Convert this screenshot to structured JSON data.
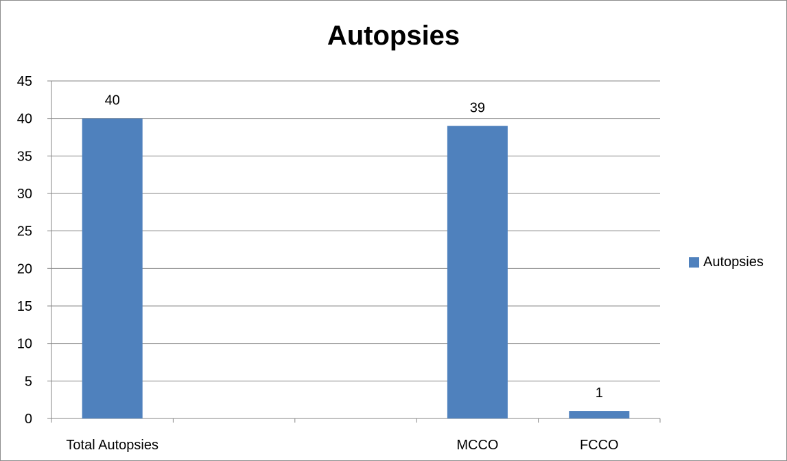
{
  "chart_data": {
    "type": "bar",
    "title": "Autopsies",
    "categories": [
      "Total Autopsies",
      "",
      "",
      "MCCO",
      "FCCO"
    ],
    "series": [
      {
        "name": "Autopsies",
        "values": [
          40,
          null,
          null,
          39,
          1
        ],
        "color": "#4f81bd"
      }
    ],
    "data_labels": [
      "40",
      "",
      "",
      "39",
      "1"
    ],
    "ylim": [
      0,
      45
    ],
    "yticks": [
      0,
      5,
      10,
      15,
      20,
      25,
      30,
      35,
      40,
      45
    ],
    "grid": true,
    "legend_position": "right"
  }
}
